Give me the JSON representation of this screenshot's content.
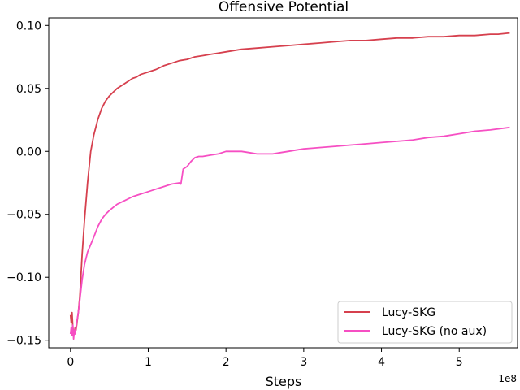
{
  "chart_data": {
    "type": "line",
    "title": "Offensive Potential",
    "xlabel": "Steps",
    "ylabel": "",
    "x_offset_label": "1e8",
    "xlim": [
      -0.28,
      5.75
    ],
    "ylim": [
      -0.156,
      0.106
    ],
    "x_ticks": [
      0,
      1,
      2,
      3,
      4,
      5
    ],
    "x_tick_labels": [
      "0",
      "1",
      "2",
      "3",
      "4",
      "5"
    ],
    "y_ticks": [
      0.1,
      0.05,
      0.0,
      -0.05,
      -0.1,
      -0.15
    ],
    "y_tick_labels": [
      "0.10",
      "0.05",
      "0.00",
      "−0.05",
      "−0.10",
      "−0.15"
    ],
    "grid": false,
    "legend_position": "lower-right",
    "series": [
      {
        "name": "Lucy-SKG",
        "color": "#d6404e",
        "x": [
          0.0,
          0.01,
          0.02,
          0.03,
          0.04,
          0.05,
          0.06,
          0.07,
          0.08,
          0.1,
          0.12,
          0.15,
          0.18,
          0.22,
          0.26,
          0.3,
          0.35,
          0.4,
          0.45,
          0.5,
          0.55,
          0.6,
          0.65,
          0.7,
          0.75,
          0.8,
          0.85,
          0.9,
          0.95,
          1.0,
          1.1,
          1.2,
          1.3,
          1.4,
          1.5,
          1.6,
          1.7,
          1.8,
          1.9,
          2.0,
          2.2,
          2.4,
          2.6,
          2.8,
          3.0,
          3.2,
          3.4,
          3.6,
          3.8,
          4.0,
          4.2,
          4.4,
          4.6,
          4.8,
          5.0,
          5.2,
          5.4,
          5.5,
          5.65
        ],
        "y": [
          -0.13,
          -0.136,
          -0.128,
          -0.14,
          -0.143,
          -0.144,
          -0.14,
          -0.142,
          -0.138,
          -0.128,
          -0.115,
          -0.082,
          -0.055,
          -0.025,
          0.0,
          0.013,
          0.025,
          0.034,
          0.04,
          0.044,
          0.047,
          0.05,
          0.052,
          0.054,
          0.056,
          0.058,
          0.059,
          0.061,
          0.062,
          0.063,
          0.065,
          0.068,
          0.07,
          0.072,
          0.073,
          0.075,
          0.076,
          0.077,
          0.078,
          0.079,
          0.081,
          0.082,
          0.083,
          0.084,
          0.085,
          0.086,
          0.087,
          0.088,
          0.088,
          0.089,
          0.09,
          0.09,
          0.091,
          0.091,
          0.092,
          0.092,
          0.093,
          0.093,
          0.094
        ]
      },
      {
        "name": "Lucy-SKG (no aux)",
        "color": "#f64fc3",
        "x": [
          0.0,
          0.01,
          0.02,
          0.03,
          0.04,
          0.05,
          0.06,
          0.07,
          0.08,
          0.1,
          0.12,
          0.15,
          0.18,
          0.22,
          0.26,
          0.3,
          0.35,
          0.4,
          0.45,
          0.5,
          0.6,
          0.7,
          0.8,
          0.9,
          1.0,
          1.1,
          1.2,
          1.3,
          1.4,
          1.42,
          1.45,
          1.5,
          1.55,
          1.6,
          1.65,
          1.7,
          1.8,
          1.9,
          2.0,
          2.1,
          2.2,
          2.3,
          2.4,
          2.5,
          2.6,
          2.7,
          2.8,
          2.9,
          3.0,
          3.2,
          3.4,
          3.6,
          3.8,
          4.0,
          4.2,
          4.4,
          4.6,
          4.8,
          5.0,
          5.2,
          5.4,
          5.65
        ],
        "y": [
          -0.145,
          -0.14,
          -0.146,
          -0.138,
          -0.149,
          -0.142,
          -0.145,
          -0.14,
          -0.136,
          -0.128,
          -0.118,
          -0.102,
          -0.09,
          -0.08,
          -0.074,
          -0.068,
          -0.06,
          -0.054,
          -0.05,
          -0.047,
          -0.042,
          -0.039,
          -0.036,
          -0.034,
          -0.032,
          -0.03,
          -0.028,
          -0.026,
          -0.025,
          -0.026,
          -0.014,
          -0.012,
          -0.008,
          -0.005,
          -0.004,
          -0.004,
          -0.003,
          -0.002,
          0.0,
          0.0,
          0.0,
          -0.001,
          -0.002,
          -0.002,
          -0.002,
          -0.001,
          0.0,
          0.001,
          0.002,
          0.003,
          0.004,
          0.005,
          0.006,
          0.007,
          0.008,
          0.009,
          0.011,
          0.012,
          0.014,
          0.016,
          0.017,
          0.019
        ]
      }
    ]
  }
}
